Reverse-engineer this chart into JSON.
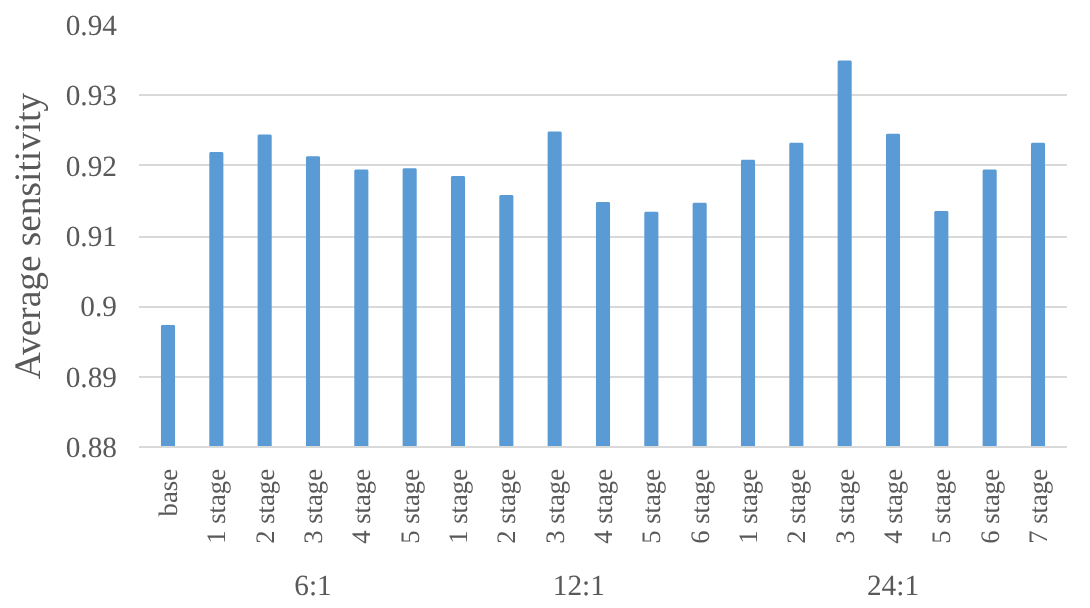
{
  "chart_data": {
    "type": "bar",
    "ylabel": "Average sensitivity",
    "categories": [
      "base",
      "1 stage",
      "2 stage",
      "3 stage",
      "4 stage",
      "5 stage",
      "1 stage",
      "2 stage",
      "3 stage",
      "4 stage",
      "5 stage",
      "6 stage",
      "1 stage",
      "2 stage",
      "3 stage",
      "4 stage",
      "5 stage",
      "6 stage",
      "7 stage"
    ],
    "values": [
      0.8972,
      0.9218,
      0.9243,
      0.9212,
      0.9193,
      0.9195,
      0.9184,
      0.9157,
      0.9247,
      0.9147,
      0.9133,
      0.9146,
      0.9207,
      0.9231,
      0.9348,
      0.9244,
      0.9134,
      0.9193,
      0.9231
    ],
    "color": "#5b9bd5",
    "ylim": [
      0.88,
      0.94
    ],
    "yticks": [
      0.88,
      0.89,
      0.9,
      0.91,
      0.92,
      0.93,
      0.94
    ],
    "grid": "y",
    "annotations": [
      "6:1",
      "12:1",
      "24:1"
    ]
  }
}
